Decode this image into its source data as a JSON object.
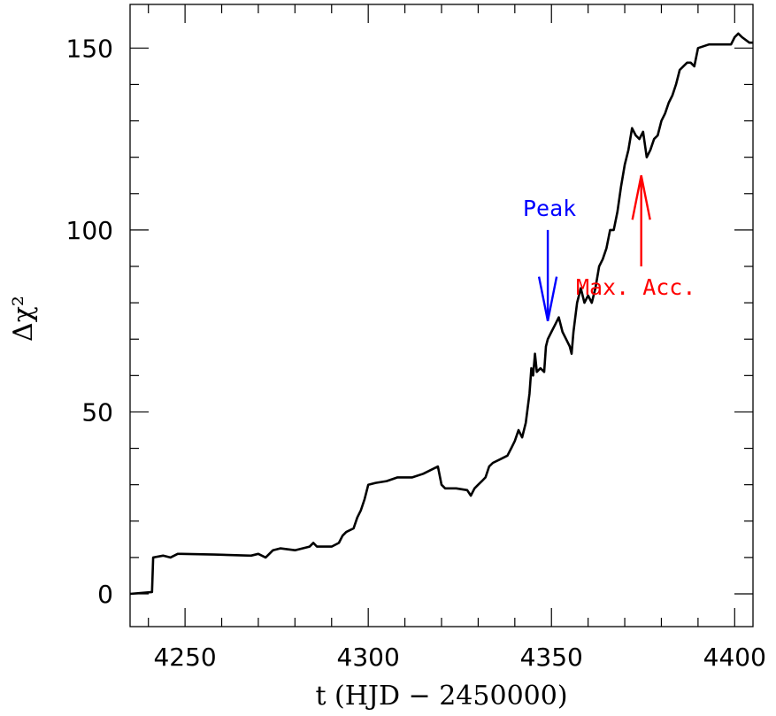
{
  "chart_data": {
    "type": "line",
    "xlabel": "t (HJD − 2450000)",
    "ylabel": "Δχ²",
    "xlim": [
      4235,
      4405
    ],
    "ylim": [
      -9,
      162
    ],
    "x_ticks_major": [
      4250,
      4300,
      4350,
      4400
    ],
    "x_ticks_minor": [
      4240,
      4260,
      4270,
      4280,
      4290,
      4310,
      4320,
      4330,
      4340,
      4360,
      4370,
      4380,
      4390
    ],
    "y_ticks_major": [
      0,
      50,
      100,
      150
    ],
    "y_ticks_minor": [
      10,
      20,
      30,
      40,
      60,
      70,
      80,
      90,
      110,
      120,
      130,
      140
    ],
    "grid": false,
    "line_color": "#000000",
    "series": [
      {
        "x": [
          4235,
          4241,
          4241.3,
          4244,
          4246,
          4248,
          4249,
          4258,
          4268,
          4270,
          4272,
          4274,
          4276,
          4280,
          4284,
          4285,
          4286,
          4290,
          4292,
          4293,
          4294,
          4296,
          4297,
          4298,
          4299,
          4299.5,
          4300,
          4302,
          4305,
          4308,
          4312,
          4315,
          4319,
          4320,
          4321,
          4324,
          4327,
          4328,
          4329,
          4330,
          4331,
          4332,
          4333,
          4334,
          4336,
          4338,
          4339,
          4340,
          4341,
          4342,
          4343,
          4344,
          4344.5,
          4345,
          4345.5,
          4346,
          4347,
          4348,
          4348.5,
          4349,
          4350,
          4351,
          4352,
          4353,
          4354,
          4355,
          4355.5,
          4356,
          4357,
          4358,
          4359,
          4360,
          4361,
          4362,
          4363,
          4364,
          4365,
          4366,
          4367,
          4368,
          4369,
          4370,
          4371,
          4372,
          4373,
          4374,
          4375,
          4376,
          4377,
          4378,
          4379,
          4380,
          4381,
          4382,
          4383,
          4384,
          4385,
          4386,
          4387,
          4388,
          4389,
          4390,
          4393,
          4396,
          4399,
          4400,
          4401,
          4402,
          4404,
          4405
        ],
        "y": [
          0,
          0.5,
          10,
          10.5,
          10,
          11,
          11,
          10.8,
          10.5,
          11,
          10,
          12,
          12.5,
          12,
          13,
          14,
          13,
          13,
          14,
          16,
          17,
          18,
          21,
          23,
          26,
          28,
          30,
          30.5,
          31,
          32,
          32,
          33,
          35,
          30,
          29,
          29,
          28.5,
          27,
          29,
          30,
          31,
          32,
          35,
          36,
          37,
          38,
          40,
          42,
          45,
          43,
          47,
          55,
          62,
          60,
          66,
          61,
          62,
          61,
          68,
          70,
          72,
          74,
          76,
          72,
          70,
          68,
          66,
          72,
          80,
          84,
          80,
          82,
          80,
          84,
          90,
          92,
          95,
          100,
          100,
          105,
          112,
          118,
          122,
          128,
          126,
          125,
          127,
          120,
          122,
          125,
          126,
          130,
          132,
          135,
          137,
          140,
          144,
          145,
          146,
          146,
          145,
          150,
          151,
          151,
          151,
          153,
          154,
          153,
          151.5,
          151.5
        ]
      }
    ],
    "annotations": [
      {
        "text": "Peak",
        "color": "#0000ff",
        "arrow": "down",
        "x": 4349,
        "y_from": 100,
        "y_to": 75
      },
      {
        "text": "Max. Acc.",
        "color": "#ff0000",
        "arrow": "up",
        "x": 4374.5,
        "y_from": 90,
        "y_to": 115
      }
    ]
  }
}
